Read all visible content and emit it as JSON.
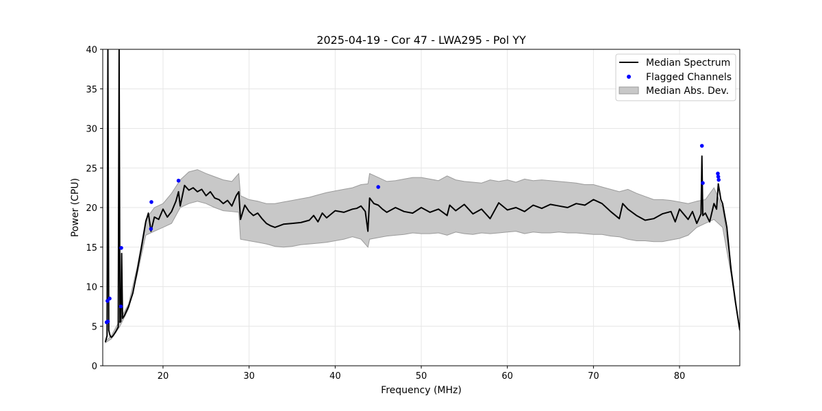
{
  "chart_data": {
    "type": "line",
    "title": "2025-04-19 - Cor 47 - LWA295 - Pol YY",
    "xlabel": "Frequency (MHz)",
    "ylabel": "Power (CPU)",
    "xlim": [
      13,
      87
    ],
    "ylim": [
      0,
      40
    ],
    "xticks": [
      20,
      30,
      40,
      50,
      60,
      70,
      80
    ],
    "yticks": [
      0,
      5,
      10,
      15,
      20,
      25,
      30,
      35,
      40
    ],
    "grid": true,
    "legend_position": "upper right",
    "legend": [
      "Median Spectrum",
      "Flagged Channels",
      "Median Abs. Dev."
    ],
    "colors": {
      "median": "#000000",
      "flagged": "#0000ff",
      "band_fill": "#c8c8c8",
      "band_edge": "#9a9a9a",
      "grid": "#e6e6e6"
    },
    "series": [
      {
        "name": "Median Spectrum",
        "kind": "line",
        "x": [
          13.3,
          13.5,
          13.6,
          13.7,
          13.8,
          13.9,
          14.0,
          14.2,
          14.5,
          14.8,
          14.9,
          15.0,
          15.1,
          15.2,
          15.3,
          15.5,
          16.0,
          16.5,
          17.0,
          17.5,
          18.0,
          18.3,
          18.6,
          19.0,
          19.5,
          20.0,
          20.5,
          21.0,
          21.5,
          21.8,
          22.0,
          22.5,
          23.0,
          23.5,
          24.0,
          24.5,
          25.0,
          25.5,
          26.0,
          26.5,
          27.0,
          27.5,
          28.0,
          28.5,
          28.8,
          29.0,
          29.5,
          30.0,
          30.5,
          31.0,
          31.5,
          32.0,
          32.5,
          33.0,
          34.0,
          35.0,
          36.0,
          37.0,
          37.5,
          38.0,
          38.5,
          39.0,
          40.0,
          41.0,
          42.0,
          42.5,
          43.0,
          43.5,
          43.8,
          44.0,
          44.5,
          45.0,
          45.5,
          46.0,
          47.0,
          48.0,
          49.0,
          50.0,
          51.0,
          52.0,
          53.0,
          53.3,
          54.0,
          55.0,
          56.0,
          57.0,
          58.0,
          59.0,
          60.0,
          61.0,
          62.0,
          63.0,
          64.0,
          65.0,
          66.0,
          67.0,
          68.0,
          69.0,
          70.0,
          71.0,
          72.0,
          73.0,
          73.4,
          74.0,
          75.0,
          76.0,
          77.0,
          78.0,
          79.0,
          79.5,
          80.0,
          81.0,
          81.5,
          82.0,
          82.5,
          82.6,
          82.7,
          83.0,
          83.5,
          84.0,
          84.3,
          84.5,
          84.8,
          85.0,
          85.5,
          86.0,
          86.5,
          87.0
        ],
        "values": [
          3.0,
          3.8,
          40,
          4.5,
          4.0,
          3.7,
          3.6,
          3.8,
          4.3,
          4.9,
          40,
          5.5,
          5.6,
          14.2,
          6.0,
          6.3,
          7.5,
          9.2,
          12.0,
          15.0,
          18.2,
          19.3,
          17.0,
          18.8,
          18.5,
          19.8,
          18.8,
          19.5,
          20.8,
          22.0,
          20.2,
          22.8,
          22.2,
          22.5,
          22.0,
          22.3,
          21.5,
          22.0,
          21.2,
          21.0,
          20.5,
          20.9,
          20.2,
          21.5,
          22.0,
          18.5,
          20.3,
          19.5,
          19.0,
          19.3,
          18.6,
          18.0,
          17.7,
          17.5,
          17.9,
          18.0,
          18.1,
          18.4,
          19.0,
          18.2,
          19.3,
          18.7,
          19.6,
          19.4,
          19.8,
          19.9,
          20.2,
          19.5,
          17.0,
          21.2,
          20.5,
          20.3,
          19.8,
          19.4,
          20.0,
          19.5,
          19.3,
          20.0,
          19.4,
          19.8,
          19.0,
          20.3,
          19.6,
          20.4,
          19.2,
          19.8,
          18.6,
          20.6,
          19.7,
          20.0,
          19.5,
          20.3,
          19.9,
          20.4,
          20.2,
          20.0,
          20.5,
          20.3,
          21.0,
          20.5,
          19.5,
          18.6,
          20.5,
          19.8,
          19.0,
          18.4,
          18.6,
          19.2,
          19.5,
          18.2,
          19.8,
          18.5,
          19.5,
          18.0,
          19.2,
          26.5,
          19.0,
          19.3,
          18.2,
          20.5,
          19.8,
          23.0,
          21.0,
          20.5,
          17.5,
          12.0,
          8.0,
          4.5
        ]
      },
      {
        "name": "Flagged Channels",
        "kind": "scatter",
        "x": [
          13.45,
          13.55,
          13.6,
          13.8,
          15.1,
          15.15,
          18.6,
          18.65,
          21.8,
          45.0,
          82.6,
          82.7,
          84.45,
          84.5,
          84.55
        ],
        "values": [
          5.5,
          8.2,
          5.6,
          8.5,
          7.5,
          14.9,
          17.3,
          20.7,
          23.4,
          22.6,
          27.8,
          23.1,
          24.3,
          23.9,
          23.5
        ]
      },
      {
        "name": "Median Abs. Dev.",
        "kind": "band",
        "x": [
          13.3,
          14.0,
          15.0,
          16.0,
          17.0,
          18.0,
          19.0,
          20.0,
          21.0,
          22.0,
          23.0,
          24.0,
          25.0,
          26.0,
          27.0,
          28.0,
          28.8,
          29.0,
          30.0,
          31.0,
          32.0,
          33.0,
          34.0,
          35.0,
          36.0,
          37.0,
          38.0,
          39.0,
          40.0,
          41.0,
          42.0,
          43.0,
          43.8,
          44.0,
          45.0,
          46.0,
          47.0,
          48.0,
          49.0,
          50.0,
          51.0,
          52.0,
          53.0,
          54.0,
          55.0,
          56.0,
          57.0,
          58.0,
          59.0,
          60.0,
          61.0,
          62.0,
          63.0,
          64.0,
          65.0,
          66.0,
          67.0,
          68.0,
          69.0,
          70.0,
          71.0,
          72.0,
          73.0,
          74.0,
          75.0,
          76.0,
          77.0,
          78.0,
          79.0,
          80.0,
          81.0,
          82.0,
          83.0,
          84.0,
          85.0,
          86.0,
          87.0
        ],
        "upper": [
          3.1,
          3.8,
          5.8,
          7.8,
          12.5,
          18.5,
          20.0,
          20.5,
          21.8,
          23.5,
          24.5,
          24.8,
          24.3,
          23.9,
          23.5,
          23.3,
          24.3,
          21.5,
          21.0,
          20.8,
          20.5,
          20.5,
          20.7,
          20.9,
          21.1,
          21.3,
          21.6,
          21.9,
          22.1,
          22.3,
          22.5,
          22.9,
          23.0,
          24.3,
          23.8,
          23.3,
          23.4,
          23.6,
          23.8,
          23.8,
          23.6,
          23.4,
          24.0,
          23.5,
          23.3,
          23.2,
          23.1,
          23.5,
          23.3,
          23.5,
          23.2,
          23.6,
          23.4,
          23.5,
          23.4,
          23.3,
          23.2,
          23.1,
          22.9,
          22.9,
          22.6,
          22.3,
          22.0,
          22.3,
          21.8,
          21.4,
          21.0,
          21.0,
          20.9,
          20.7,
          20.5,
          20.8,
          21.0,
          22.5,
          20.0,
          12.5,
          4.5
        ],
        "lower": [
          2.9,
          3.4,
          5.0,
          7.2,
          11.5,
          16.5,
          17.0,
          17.5,
          18.0,
          20.0,
          20.5,
          20.8,
          20.5,
          20.0,
          19.6,
          19.5,
          19.4,
          16.0,
          15.8,
          15.6,
          15.4,
          15.1,
          15.0,
          15.1,
          15.3,
          15.4,
          15.5,
          15.6,
          15.8,
          16.0,
          16.3,
          16.0,
          15.0,
          16.0,
          16.2,
          16.4,
          16.5,
          16.6,
          16.8,
          16.7,
          16.7,
          16.8,
          16.5,
          16.9,
          16.7,
          16.6,
          16.8,
          16.7,
          16.8,
          16.9,
          17.0,
          16.7,
          16.9,
          16.8,
          16.8,
          16.9,
          16.8,
          16.8,
          16.7,
          16.6,
          16.6,
          16.4,
          16.3,
          16.0,
          15.8,
          15.8,
          15.7,
          15.7,
          15.9,
          16.1,
          16.5,
          17.5,
          18.0,
          18.5,
          17.5,
          11.5,
          4.3
        ]
      }
    ]
  }
}
